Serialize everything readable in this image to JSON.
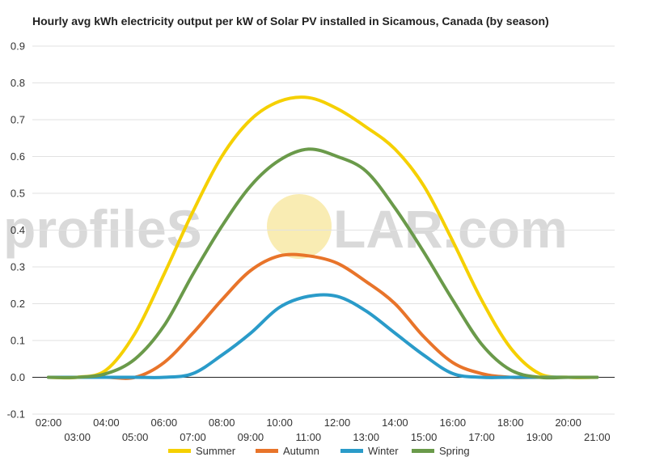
{
  "chart_data": {
    "type": "line",
    "title": "Hourly avg kWh electricity output per kW of Solar PV installed in Sicamous, Canada (by season)",
    "xlabel": "",
    "ylabel": "",
    "ylim": [
      -0.1,
      0.9
    ],
    "yticks": [
      -0.1,
      0.0,
      0.1,
      0.2,
      0.3,
      0.4,
      0.5,
      0.6,
      0.7,
      0.8,
      0.9
    ],
    "grid": true,
    "legend_position": "bottom",
    "x": [
      "02:00",
      "03:00",
      "04:00",
      "05:00",
      "06:00",
      "07:00",
      "08:00",
      "09:00",
      "10:00",
      "11:00",
      "12:00",
      "13:00",
      "14:00",
      "15:00",
      "16:00",
      "17:00",
      "18:00",
      "19:00",
      "20:00",
      "21:00"
    ],
    "series": [
      {
        "name": "Summer",
        "color": "#f5d000",
        "values": [
          0.0,
          0.0,
          0.02,
          0.12,
          0.28,
          0.45,
          0.6,
          0.7,
          0.75,
          0.76,
          0.73,
          0.68,
          0.62,
          0.52,
          0.37,
          0.21,
          0.08,
          0.01,
          0.0,
          0.0
        ]
      },
      {
        "name": "Autumn",
        "color": "#e8742a",
        "values": [
          0.0,
          0.0,
          0.0,
          0.0,
          0.04,
          0.12,
          0.21,
          0.29,
          0.33,
          0.33,
          0.31,
          0.26,
          0.2,
          0.11,
          0.04,
          0.01,
          0.0,
          0.0,
          0.0,
          0.0
        ]
      },
      {
        "name": "Winter",
        "color": "#2a9bc9",
        "values": [
          0.0,
          0.0,
          0.0,
          0.0,
          0.0,
          0.01,
          0.06,
          0.12,
          0.19,
          0.22,
          0.22,
          0.18,
          0.12,
          0.06,
          0.01,
          0.0,
          0.0,
          0.0,
          0.0,
          0.0
        ]
      },
      {
        "name": "Spring",
        "color": "#6a9a4a",
        "values": [
          0.0,
          0.0,
          0.01,
          0.05,
          0.14,
          0.28,
          0.41,
          0.52,
          0.59,
          0.62,
          0.6,
          0.56,
          0.46,
          0.34,
          0.21,
          0.09,
          0.02,
          0.0,
          0.0,
          0.0
        ]
      }
    ],
    "watermark": {
      "text_left": "profileS",
      "text_right": "LAR.com",
      "sun_color": "#f7e59a"
    }
  }
}
